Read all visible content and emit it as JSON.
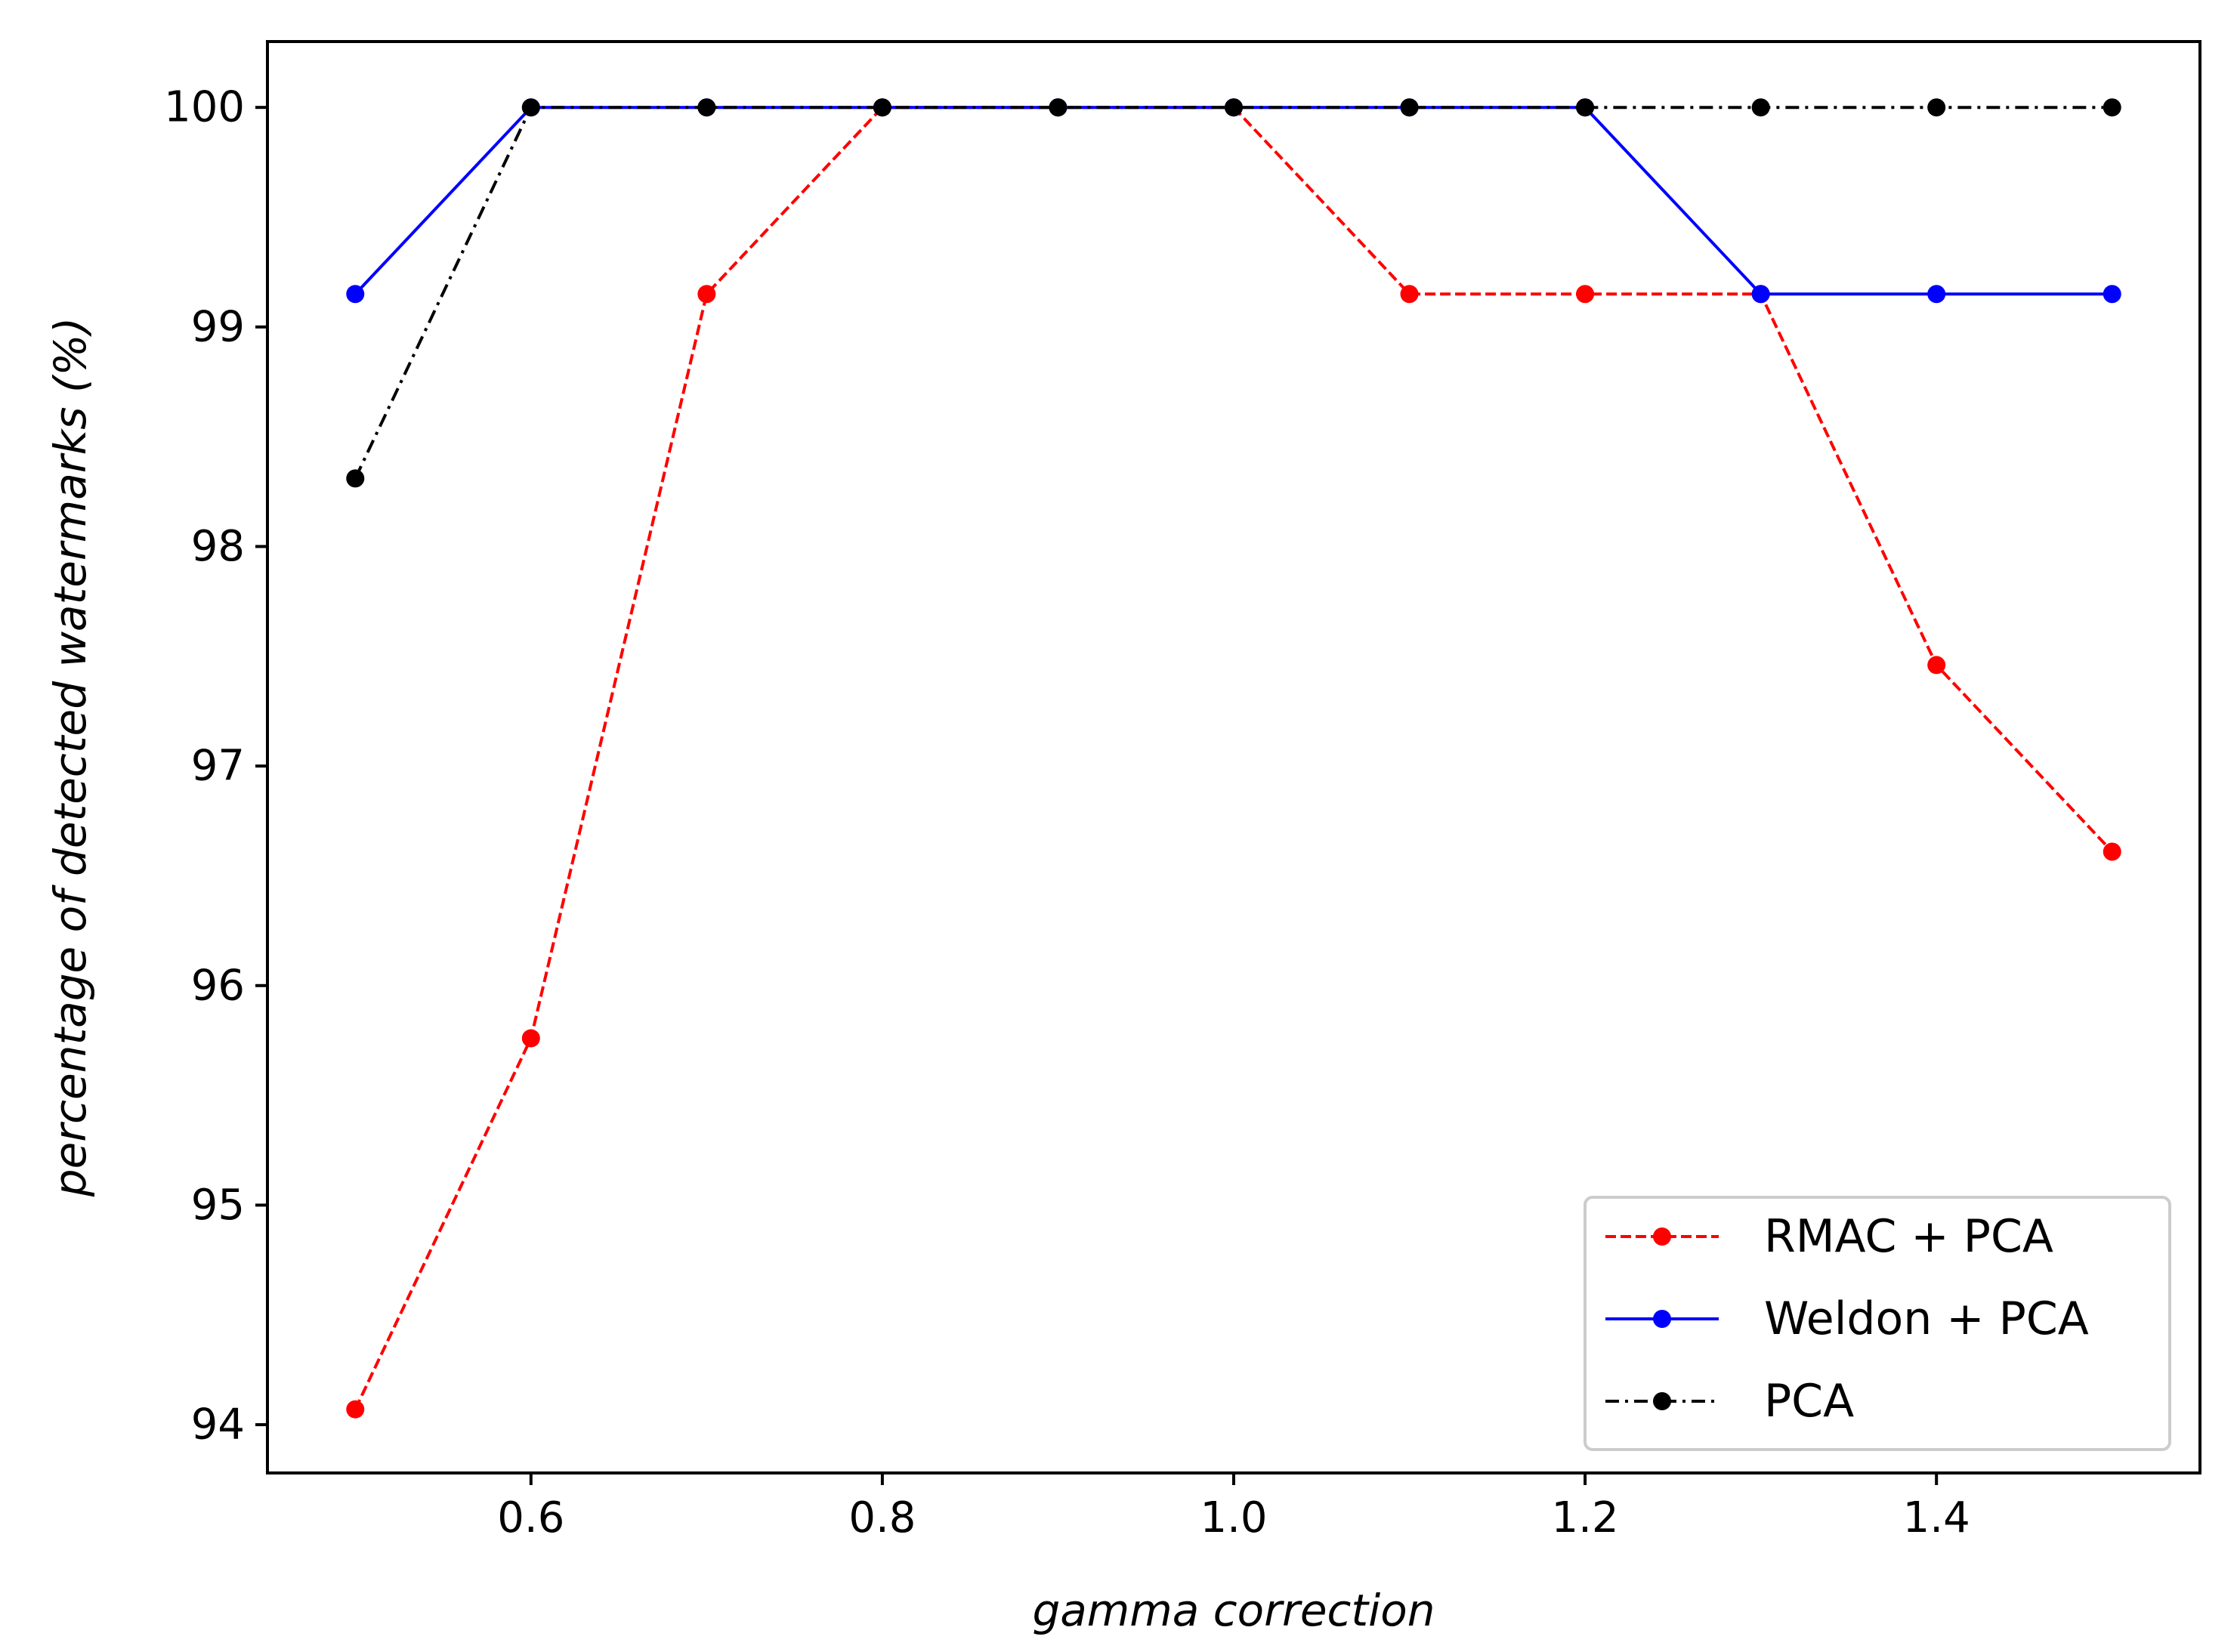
{
  "chart_data": {
    "type": "line",
    "title": "",
    "xlabel": "gamma correction",
    "ylabel": "percentage of detected watermarks (%)",
    "xlim": [
      0.45,
      1.55
    ],
    "ylim": [
      93.78,
      100.3
    ],
    "grid": false,
    "legend_position": "bottom-right",
    "x": [
      0.5,
      0.6,
      0.7,
      0.8,
      0.9,
      1.0,
      1.1,
      1.2,
      1.3,
      1.4,
      1.5
    ],
    "x_ticks": [
      0.6,
      0.8,
      1.0,
      1.2,
      1.4
    ],
    "x_tick_labels": [
      "0.6",
      "0.8",
      "1.0",
      "1.2",
      "1.4"
    ],
    "y_ticks": [
      94,
      95,
      96,
      97,
      98,
      99,
      100
    ],
    "y_tick_labels": [
      "94",
      "95",
      "96",
      "97",
      "98",
      "99",
      "100"
    ],
    "series": [
      {
        "name": "RMAC + PCA",
        "color": "#ff0000",
        "line_style": "dashed",
        "values": [
          94.07,
          95.76,
          99.15,
          100,
          100,
          100,
          99.15,
          99.15,
          99.15,
          97.46,
          96.61
        ]
      },
      {
        "name": "Weldon + PCA",
        "color": "#0000ff",
        "line_style": "solid",
        "values": [
          99.15,
          100,
          100,
          100,
          100,
          100,
          100,
          100,
          99.15,
          99.15,
          99.15
        ]
      },
      {
        "name": "PCA",
        "color": "#000000",
        "line_style": "dashdot",
        "values": [
          98.31,
          100,
          100,
          100,
          100,
          100,
          100,
          100,
          100,
          100,
          100
        ]
      }
    ]
  }
}
